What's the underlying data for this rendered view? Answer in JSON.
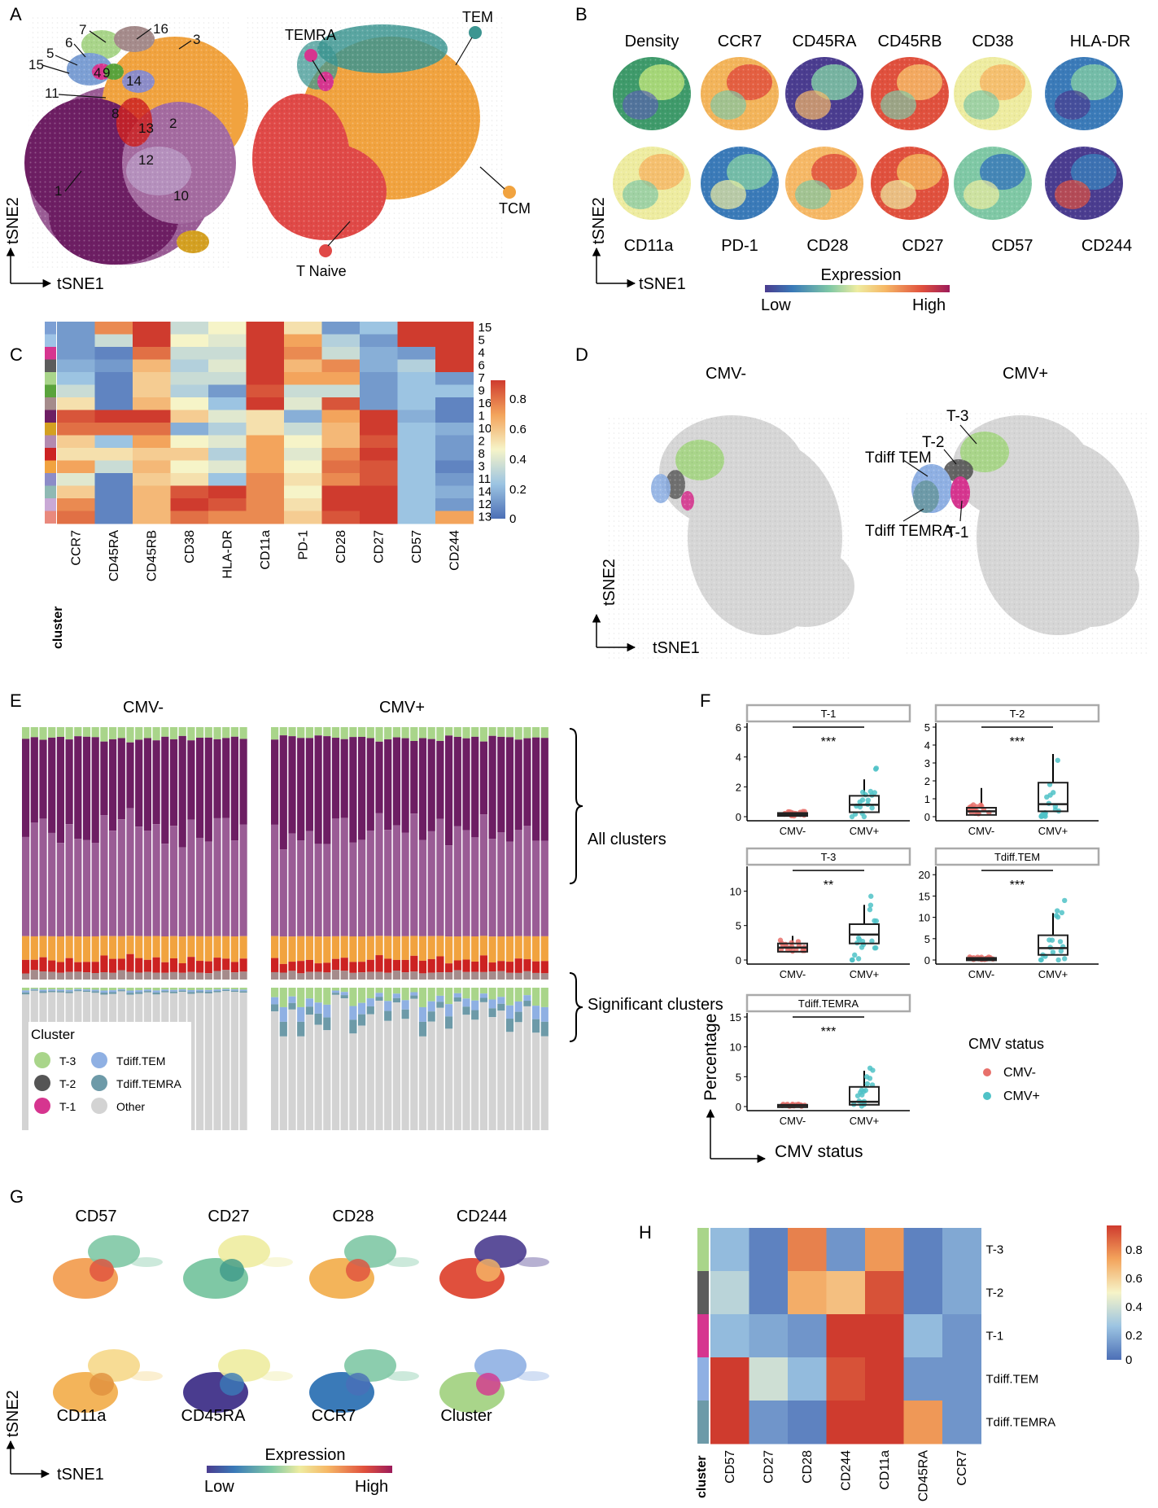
{
  "panels": {
    "A": {
      "letter": "A",
      "axis_x": "tSNE1",
      "axis_y": "tSNE2",
      "cluster_labels": [
        "7",
        "16",
        "3",
        "6",
        "5",
        "15",
        "4",
        "9",
        "14",
        "11",
        "8",
        "13",
        "2",
        "12",
        "10",
        "1"
      ],
      "population_labels": [
        "TEMRA",
        "TEM",
        "TCM",
        "T Naive"
      ],
      "colors": {
        "purple_dark": "#6d1e63",
        "purple_mid": "#9a5c95",
        "orange": "#f1a33f",
        "red": "#e04947",
        "teal": "#3c9591",
        "gold": "#d4a021"
      }
    },
    "B": {
      "letter": "B",
      "markers_top": [
        "Density",
        "CCR7",
        "CD45RA",
        "CD45RB",
        "CD38",
        "HLA-DR"
      ],
      "markers_bottom": [
        "CD11a",
        "PD-1",
        "CD28",
        "CD27",
        "CD57",
        "CD244"
      ],
      "axis_x": "tSNE1",
      "axis_y": "tSNE2",
      "legend_title": "Expression",
      "legend_low": "Low",
      "legend_high": "High"
    },
    "C": {
      "letter": "C",
      "rows": [
        "15",
        "5",
        "4",
        "6",
        "7",
        "9",
        "16",
        "1",
        "10",
        "2",
        "8",
        "3",
        "11",
        "14",
        "12",
        "13"
      ],
      "columns": [
        "CCR7",
        "CD45RA",
        "CD45RB",
        "CD38",
        "HLA-DR",
        "CD11a",
        "PD-1",
        "CD28",
        "CD27",
        "CD57",
        "CD244"
      ],
      "corner_label": "cluster",
      "scale_ticks": [
        "0.8",
        "0.6",
        "0.4",
        "0.2",
        "0"
      ],
      "row_colors": [
        "#7c9fd4",
        "#9ec3e6",
        "#d6358f",
        "#5c5c5c",
        "#a9d58a",
        "#5aa33c",
        "#a58b8b",
        "#6d1e63",
        "#d4a021",
        "#b38ab0",
        "#cc2222",
        "#f1a33f",
        "#8c8cc8",
        "#8fb9b4",
        "#c9a9d6",
        "#e9897d"
      ]
    },
    "D": {
      "letter": "D",
      "titles": [
        "CMV-",
        "CMV+"
      ],
      "labels": [
        "T-3",
        "T-2",
        "Tdiff TEM",
        "Tdiff TEMRA",
        "T-1"
      ],
      "axis_x": "tSNE1",
      "axis_y": "tSNE2"
    },
    "E": {
      "letter": "E",
      "titles": [
        "CMV-",
        "CMV+"
      ],
      "bracket_top": "All clusters",
      "bracket_bottom": "Significant clusters",
      "legend_title": "Cluster",
      "legend_items": [
        {
          "label": "T-3",
          "color": "#a9d58a"
        },
        {
          "label": "Tdiff.TEM",
          "color": "#8fb0e3"
        },
        {
          "label": "T-2",
          "color": "#555555"
        },
        {
          "label": "Tdiff.TEMRA",
          "color": "#6d9aa8"
        },
        {
          "label": "T-1",
          "color": "#d6358f"
        },
        {
          "label": "Other",
          "color": "#d3d3d3"
        }
      ]
    },
    "F": {
      "letter": "F",
      "facets": [
        {
          "title": "T-1",
          "sig": "***",
          "yticks": [
            "0",
            "2",
            "4",
            "6"
          ]
        },
        {
          "title": "T-2",
          "sig": "***",
          "yticks": [
            "0",
            "1",
            "2",
            "3",
            "4",
            "5"
          ]
        },
        {
          "title": "T-3",
          "sig": "**",
          "yticks": [
            "0",
            "5",
            "10"
          ]
        },
        {
          "title": "Tdiff.TEM",
          "sig": "***",
          "yticks": [
            "0",
            "5",
            "10",
            "15",
            "20"
          ]
        },
        {
          "title": "Tdiff.TEMRA",
          "sig": "***",
          "yticks": [
            "0",
            "5",
            "10",
            "15"
          ]
        }
      ],
      "x_categories": [
        "CMV-",
        "CMV+"
      ],
      "axis_y": "Percentage",
      "axis_x": "CMV status",
      "legend_title": "CMV status",
      "legend_items": [
        {
          "label": "CMV-",
          "color": "#e8706b"
        },
        {
          "label": "CMV+",
          "color": "#4fc2c7"
        }
      ]
    },
    "G": {
      "letter": "G",
      "markers_top": [
        "CD57",
        "CD27",
        "CD28",
        "CD244"
      ],
      "markers_bottom": [
        "CD11a",
        "CD45RA",
        "CCR7",
        "Cluster"
      ],
      "axis_x": "tSNE1",
      "axis_y": "tSNE2",
      "legend_title": "Expression",
      "legend_low": "Low",
      "legend_high": "High"
    },
    "H": {
      "letter": "H",
      "rows": [
        "T-3",
        "T-2",
        "T-1",
        "Tdiff.TEM",
        "Tdiff.TEMRA"
      ],
      "columns": [
        "CD57",
        "CD27",
        "CD28",
        "CD244",
        "CD11a",
        "CD45RA",
        "CCR7"
      ],
      "corner_label": "cluster",
      "scale_ticks": [
        "0.8",
        "0.6",
        "0.4",
        "0.2",
        "0"
      ],
      "row_colors": [
        "#a9d58a",
        "#5c5c5c",
        "#d6358f",
        "#8fb0e3",
        "#6d9aa8"
      ]
    }
  },
  "chart_data": [
    {
      "type": "heatmap",
      "title": "C",
      "rows": [
        "15",
        "5",
        "4",
        "6",
        "7",
        "9",
        "16",
        "1",
        "10",
        "2",
        "8",
        "3",
        "11",
        "14",
        "12",
        "13"
      ],
      "columns": [
        "CCR7",
        "CD45RA",
        "CD45RB",
        "CD38",
        "HLA-DR",
        "CD11a",
        "PD-1",
        "CD28",
        "CD27",
        "CD57",
        "CD244"
      ],
      "values": [
        [
          0.1,
          0.65,
          0.85,
          0.3,
          0.4,
          0.9,
          0.45,
          0.1,
          0.2,
          0.95,
          0.95
        ],
        [
          0.1,
          0.3,
          0.85,
          0.4,
          0.35,
          0.85,
          0.6,
          0.25,
          0.1,
          0.9,
          0.85
        ],
        [
          0.1,
          0.05,
          0.7,
          0.3,
          0.3,
          0.85,
          0.65,
          0.3,
          0.15,
          0.1,
          0.8
        ],
        [
          0.15,
          0.1,
          0.55,
          0.25,
          0.35,
          0.8,
          0.55,
          0.65,
          0.15,
          0.25,
          0.8
        ],
        [
          0.2,
          0.05,
          0.5,
          0.3,
          0.3,
          0.85,
          0.6,
          0.6,
          0.1,
          0.2,
          0.1
        ],
        [
          0.3,
          0.05,
          0.5,
          0.25,
          0.1,
          0.75,
          0.3,
          0.3,
          0.1,
          0.2,
          0.2
        ],
        [
          0.45,
          0.05,
          0.55,
          0.4,
          0.2,
          0.85,
          0.35,
          0.75,
          0.1,
          0.2,
          0.05
        ],
        [
          0.75,
          0.8,
          0.8,
          0.5,
          0.35,
          0.45,
          0.15,
          0.6,
          0.85,
          0.15,
          0.05
        ],
        [
          0.7,
          0.7,
          0.7,
          0.15,
          0.25,
          0.45,
          0.3,
          0.55,
          0.85,
          0.2,
          0.15
        ],
        [
          0.5,
          0.2,
          0.6,
          0.4,
          0.35,
          0.6,
          0.4,
          0.55,
          0.75,
          0.2,
          0.1
        ],
        [
          0.45,
          0.45,
          0.5,
          0.5,
          0.25,
          0.6,
          0.35,
          0.65,
          0.8,
          0.2,
          0.1
        ],
        [
          0.6,
          0.3,
          0.55,
          0.4,
          0.35,
          0.6,
          0.4,
          0.7,
          0.75,
          0.2,
          0.05
        ],
        [
          0.35,
          0.05,
          0.5,
          0.45,
          0.2,
          0.65,
          0.45,
          0.65,
          0.75,
          0.2,
          0.1
        ],
        [
          0.5,
          0.05,
          0.55,
          0.75,
          0.95,
          0.65,
          0.4,
          0.8,
          0.8,
          0.2,
          0.15
        ],
        [
          0.65,
          0.05,
          0.55,
          0.95,
          0.75,
          0.65,
          0.45,
          0.8,
          0.8,
          0.2,
          0.1
        ],
        [
          0.7,
          0.05,
          0.55,
          0.7,
          0.65,
          0.65,
          0.5,
          0.75,
          0.8,
          0.2,
          0.6
        ]
      ],
      "scale": [
        0,
        0.8
      ]
    },
    {
      "type": "heatmap",
      "title": "H",
      "rows": [
        "T-3",
        "T-2",
        "T-1",
        "Tdiff.TEM",
        "Tdiff.TEMRA"
      ],
      "columns": [
        "CD57",
        "CD27",
        "CD28",
        "CD244",
        "CD11a",
        "CD45RA",
        "CCR7"
      ],
      "values": [
        [
          0.2,
          0.05,
          0.75,
          0.1,
          0.7,
          0.05,
          0.15
        ],
        [
          0.3,
          0.05,
          0.65,
          0.6,
          0.85,
          0.05,
          0.15
        ],
        [
          0.2,
          0.15,
          0.1,
          0.9,
          0.9,
          0.2,
          0.1
        ],
        [
          0.95,
          0.35,
          0.2,
          0.85,
          0.9,
          0.1,
          0.1
        ],
        [
          0.9,
          0.1,
          0.05,
          0.95,
          0.9,
          0.7,
          0.1
        ]
      ],
      "scale": [
        0,
        0.9
      ]
    },
    {
      "type": "scatter",
      "title": "F",
      "series": [
        {
          "name": "T-1",
          "medians": [
            0.15,
            0.8
          ],
          "q1": [
            0.05,
            0.3
          ],
          "q3": [
            0.25,
            1.4
          ],
          "max": [
            0.4,
            2.5
          ],
          "ymax": 6
        },
        {
          "name": "T-2",
          "medians": [
            0.3,
            0.7
          ],
          "q1": [
            0.1,
            0.3
          ],
          "q3": [
            0.5,
            1.9
          ],
          "max": [
            1.6,
            3.5
          ],
          "ymax": 5
        },
        {
          "name": "T-3",
          "medians": [
            1.8,
            3.7
          ],
          "q1": [
            1.2,
            2.4
          ],
          "q3": [
            2.4,
            5.2
          ],
          "max": [
            3.5,
            8
          ],
          "ymax": 13
        },
        {
          "name": "Tdiff.TEM",
          "medians": [
            0.3,
            2.8
          ],
          "q1": [
            0.1,
            1.2
          ],
          "q3": [
            0.5,
            5.8
          ],
          "max": [
            0.8,
            11
          ],
          "ymax": 21
        },
        {
          "name": "Tdiff.TEMRA",
          "medians": [
            0.2,
            0.8
          ],
          "q1": [
            0.05,
            0.3
          ],
          "q3": [
            0.3,
            3.3
          ],
          "max": [
            0.6,
            6
          ],
          "ymax": 15
        }
      ]
    }
  ]
}
